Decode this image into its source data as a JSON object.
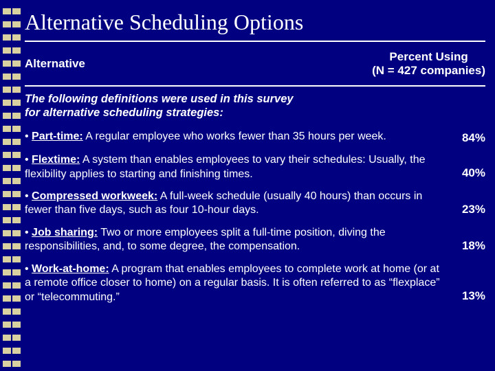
{
  "title": "Alternative Scheduling Options",
  "columns": {
    "left": "Alternative",
    "right_line1": "Percent Using",
    "right_line2": "(N = 427 companies)"
  },
  "intro_line1": "The following definitions were used in this survey",
  "intro_line2": "for alternative scheduling strategies:",
  "items": [
    {
      "term": "Part-time:",
      "definition": " A regular employee who works fewer than 35 hours per week.",
      "percent": "84%"
    },
    {
      "term": "Flextime:",
      "definition": " A system than enables employees to vary their schedules: Usually, the flexibility applies to starting and finishing times.",
      "percent": "40%"
    },
    {
      "term": "Compressed workweek:",
      "definition": " A full-week schedule (usually 40 hours) than occurs in fewer than five days, such as four 10-hour days.",
      "percent": "23%"
    },
    {
      "term": "Job sharing:",
      "definition": " Two or more employees split a full-time position, diving the responsibilities, and, to some degree, the compensation.",
      "percent": "18%"
    },
    {
      "term": "Work-at-home:",
      "definition": " A program that enables employees to complete work at home (or at a remote office closer to home) on a regular basis. It is often referred to as “flexplace” or “telecommuting.”",
      "percent": "13%"
    }
  ],
  "colors": {
    "background": "#000080",
    "text": "#ffffff",
    "decoration": "#d8d0a0"
  }
}
